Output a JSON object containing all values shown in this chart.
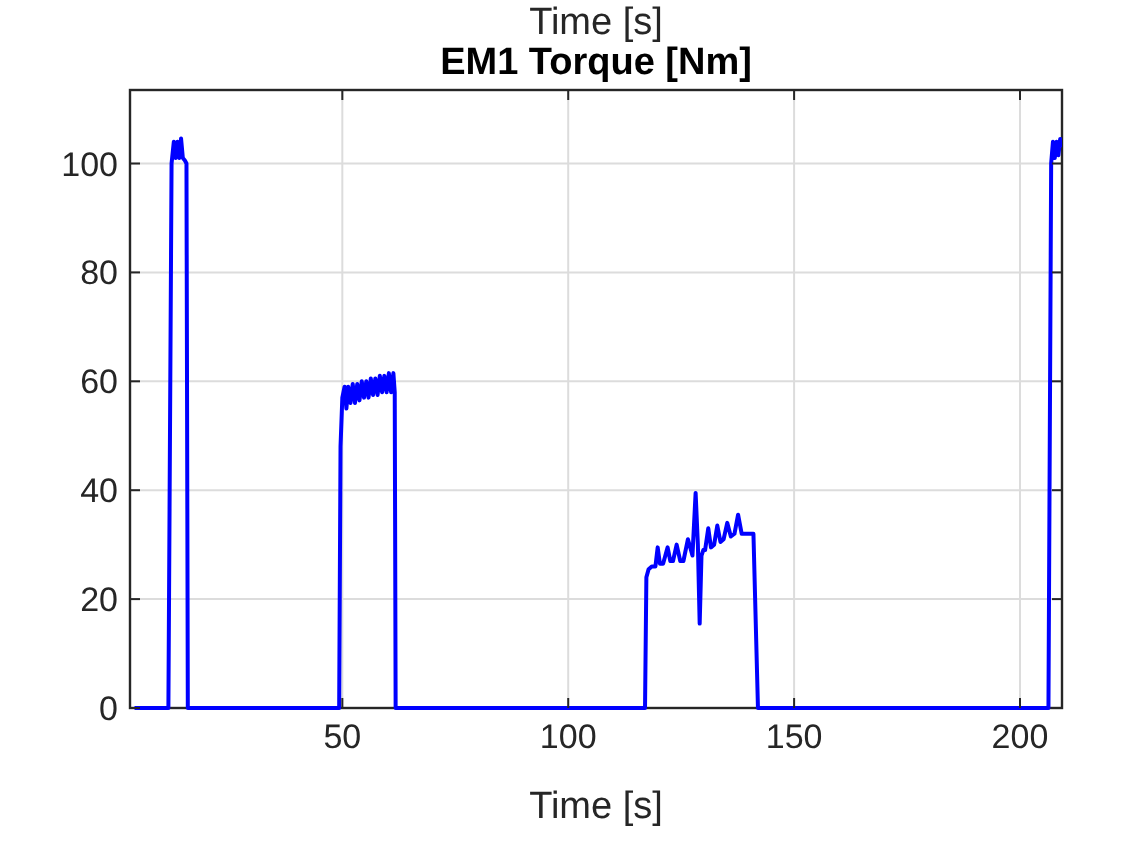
{
  "chart_data": {
    "type": "line",
    "title": "EM1 Torque [Nm]",
    "xlabel": "Time [s]",
    "annotations": [
      "Time [s]"
    ],
    "xlim": [
      3,
      209.3
    ],
    "ylim": [
      0,
      113.5
    ],
    "xticks": [
      50,
      100,
      150,
      200
    ],
    "yticks": [
      0,
      20,
      40,
      60,
      80,
      100
    ],
    "grid": true,
    "series": [
      {
        "color": "#0000ff",
        "x": [
          4,
          11.5,
          12.2,
          12.7,
          13.1,
          13.5,
          13.9,
          14.3,
          14.7,
          15.2,
          15.5,
          15.8,
          16.0,
          49.3,
          49.6,
          50.0,
          50.5,
          50.9,
          51.3,
          51.8,
          52.3,
          52.8,
          53.3,
          53.8,
          54.3,
          54.8,
          55.3,
          55.8,
          56.3,
          56.8,
          57.3,
          57.8,
          58.3,
          58.8,
          59.3,
          59.8,
          60.3,
          60.8,
          61.3,
          61.6,
          61.8,
          117.0,
          117.3,
          117.8,
          118.5,
          119.3,
          119.8,
          120.3,
          121.0,
          122.0,
          122.6,
          123.2,
          124.0,
          124.8,
          125.5,
          126.5,
          127.5,
          128.2,
          128.7,
          129.1,
          129.5,
          129.9,
          130.3,
          131.0,
          131.6,
          132.3,
          133.0,
          133.7,
          134.4,
          135.2,
          136.0,
          136.8,
          137.6,
          138.4,
          139.2,
          140.0,
          141.0,
          142.0,
          142.6,
          142.9,
          206.3,
          206.9,
          207.3,
          207.7,
          208.1,
          208.5,
          208.9,
          209.3
        ],
        "values": [
          0,
          0,
          100,
          104,
          101,
          104,
          101,
          104.6,
          101,
          100.5,
          100,
          0,
          0,
          0,
          48,
          57,
          59,
          55,
          59,
          56,
          59.5,
          56,
          59.5,
          56.5,
          60,
          57,
          60,
          57,
          60.5,
          57.5,
          60.5,
          57.5,
          61,
          58,
          61,
          58,
          61.5,
          58,
          61.5,
          58,
          0,
          0,
          24,
          25.5,
          26,
          26,
          29.5,
          26.5,
          26.5,
          29.5,
          27,
          27,
          30,
          27,
          27,
          31,
          28,
          39.5,
          30,
          15.5,
          28,
          29,
          29,
          33,
          29.5,
          30,
          33.5,
          30.5,
          31,
          34,
          31.5,
          32,
          35.5,
          32,
          32,
          32,
          32,
          0,
          0,
          0,
          0,
          100,
          104,
          101,
          104,
          101.5,
          104.5,
          103
        ]
      }
    ]
  }
}
